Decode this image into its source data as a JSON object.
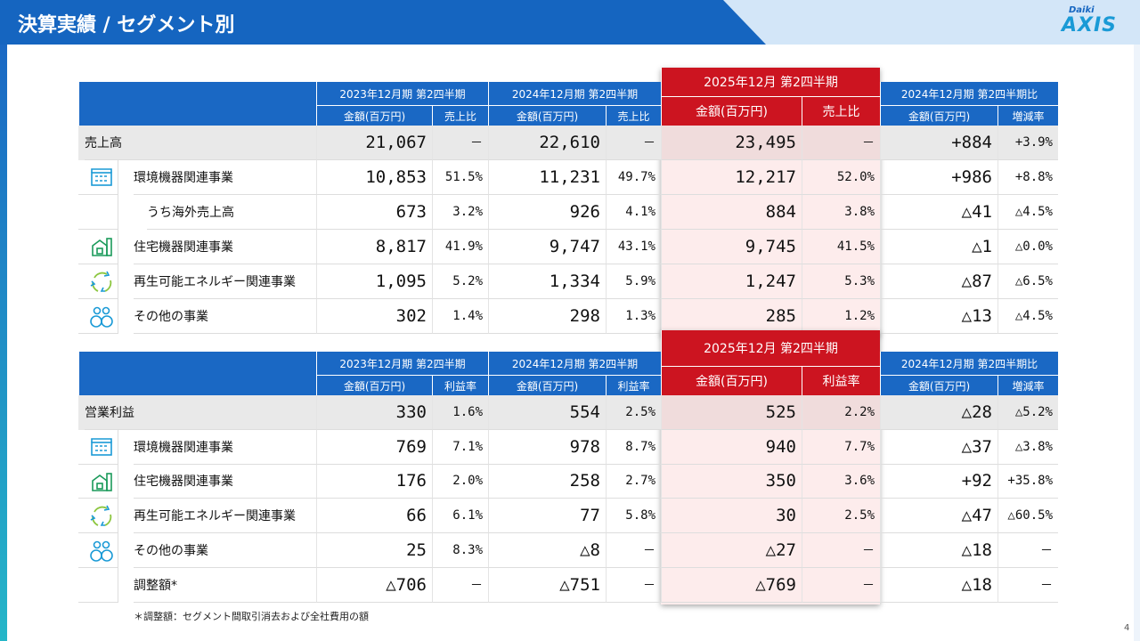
{
  "header": {
    "title": "決算実績 / セグメント別",
    "logo_top": "Daiki",
    "logo": "AXIS"
  },
  "tables": [
    {
      "periods": [
        "2023年12月期 第2四半期",
        "2024年12月期 第2四半期",
        "2025年12月 第2四半期",
        "2024年12月期 第2四半期比"
      ],
      "subheaders": [
        "金額(百万円)",
        "売上比",
        "金額(百万円)",
        "売上比",
        "金額(百万円)",
        "売上比",
        "金額(百万円)",
        "増減率"
      ],
      "rows": [
        {
          "label": "売上高",
          "cells": [
            "21,067",
            "－",
            "22,610",
            "－",
            "23,495",
            "－",
            "+884",
            "+3.9%"
          ]
        },
        {
          "label": "環境機器関連事業",
          "cells": [
            "10,853",
            "51.5%",
            "11,231",
            "49.7%",
            "12,217",
            "52.0%",
            "+986",
            "+8.8%"
          ]
        },
        {
          "label": "うち海外売上高",
          "cells": [
            "673",
            "3.2%",
            "926",
            "4.1%",
            "884",
            "3.8%",
            "△41",
            "△4.5%"
          ]
        },
        {
          "label": "住宅機器関連事業",
          "cells": [
            "8,817",
            "41.9%",
            "9,747",
            "43.1%",
            "9,745",
            "41.5%",
            "△1",
            "△0.0%"
          ]
        },
        {
          "label": "再生可能エネルギー関連事業",
          "cells": [
            "1,095",
            "5.2%",
            "1,334",
            "5.9%",
            "1,247",
            "5.3%",
            "△87",
            "△6.5%"
          ]
        },
        {
          "label": "その他の事業",
          "cells": [
            "302",
            "1.4%",
            "298",
            "1.3%",
            "285",
            "1.2%",
            "△13",
            "△4.5%"
          ]
        }
      ]
    },
    {
      "periods": [
        "2023年12月期 第2四半期",
        "2024年12月期 第2四半期",
        "2025年12月 第2四半期",
        "2024年12月期 第2四半期比"
      ],
      "subheaders": [
        "金額(百万円)",
        "利益率",
        "金額(百万円)",
        "利益率",
        "金額(百万円)",
        "利益率",
        "金額(百万円)",
        "増減率"
      ],
      "rows": [
        {
          "label": "営業利益",
          "cells": [
            "330",
            "1.6%",
            "554",
            "2.5%",
            "525",
            "2.2%",
            "△28",
            "△5.2%"
          ]
        },
        {
          "label": "環境機器関連事業",
          "cells": [
            "769",
            "7.1%",
            "978",
            "8.7%",
            "940",
            "7.7%",
            "△37",
            "△3.8%"
          ]
        },
        {
          "label": "住宅機器関連事業",
          "cells": [
            "176",
            "2.0%",
            "258",
            "2.7%",
            "350",
            "3.6%",
            "+92",
            "+35.8%"
          ]
        },
        {
          "label": "再生可能エネルギー関連事業",
          "cells": [
            "66",
            "6.1%",
            "77",
            "5.8%",
            "30",
            "2.5%",
            "△47",
            "△60.5%"
          ]
        },
        {
          "label": "その他の事業",
          "cells": [
            "25",
            "8.3%",
            "△8",
            "－",
            "△27",
            "－",
            "△18",
            "－"
          ]
        },
        {
          "label": "調整額*",
          "cells": [
            "△706",
            "－",
            "△751",
            "－",
            "△769",
            "－",
            "△18",
            "－"
          ]
        }
      ]
    }
  ],
  "footnote": "＊調整額：セグメント間取引消去および全社費用の額",
  "page_number": "4"
}
